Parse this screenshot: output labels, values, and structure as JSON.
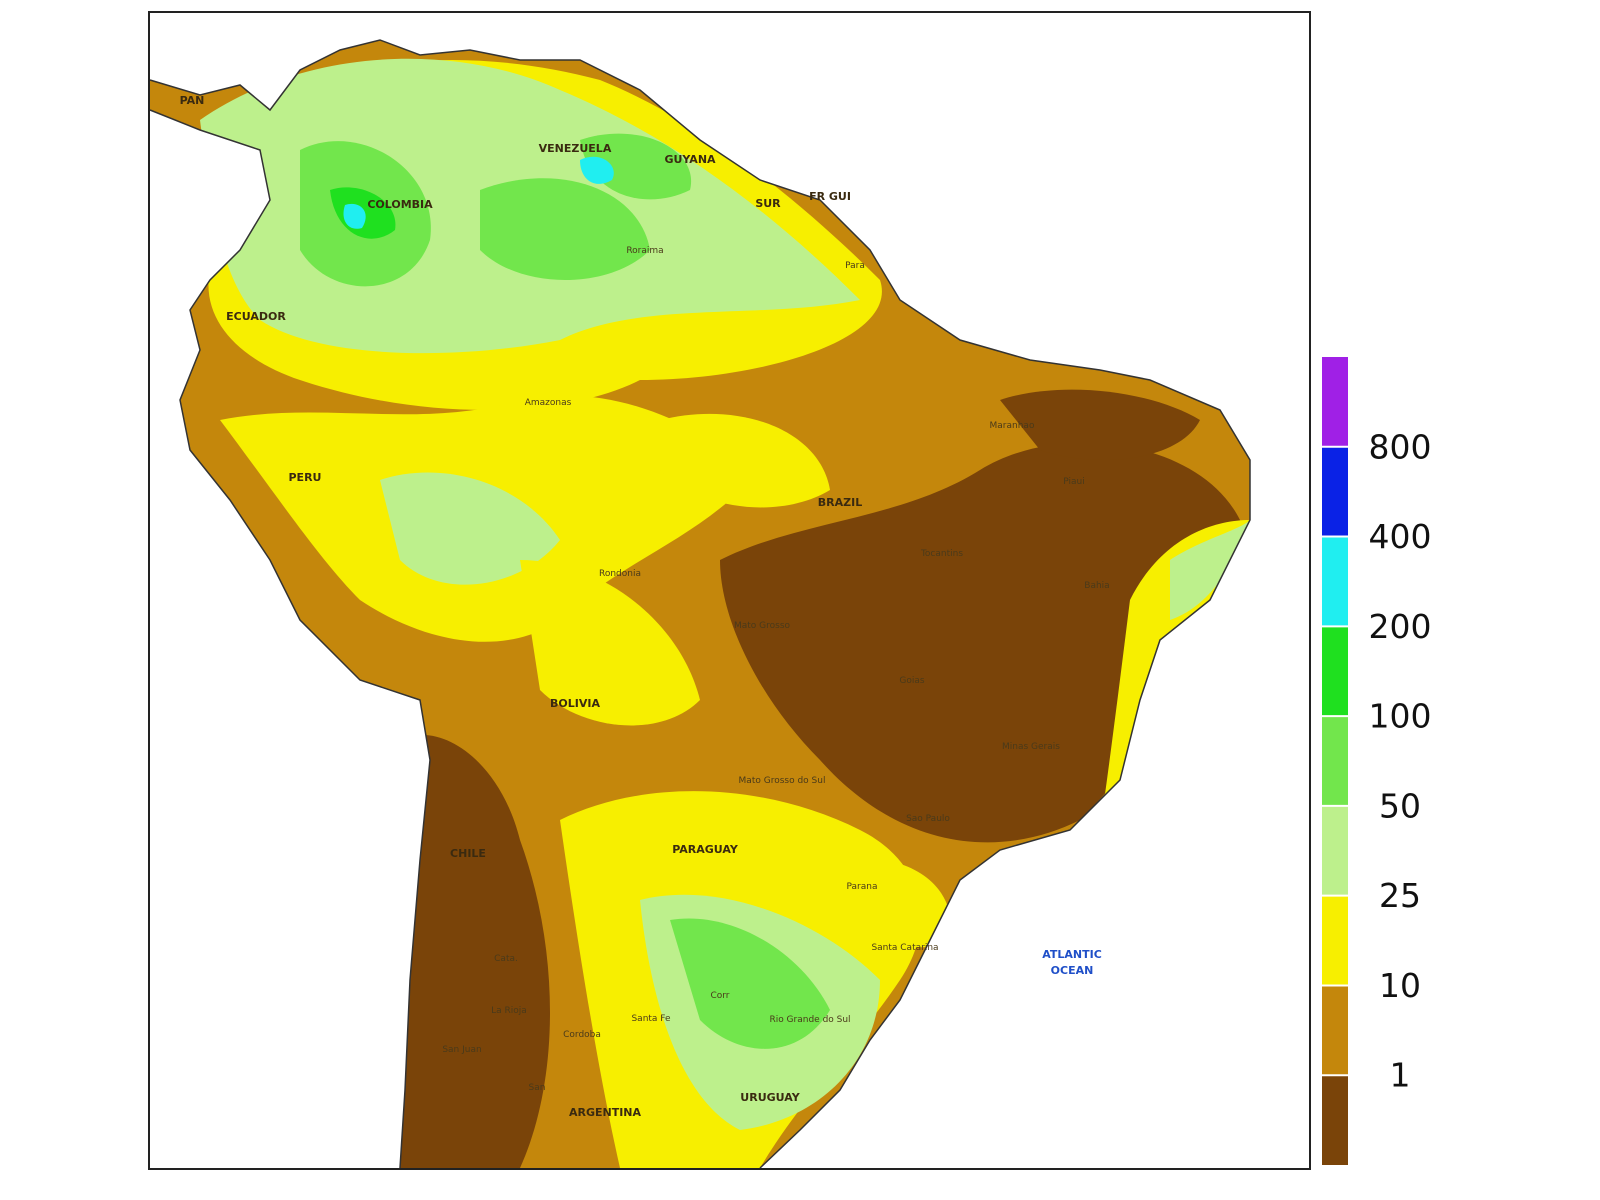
{
  "map": {
    "labels": [
      "PAN",
      "COLOMBIA",
      "VENEZUELA",
      "GUYANA",
      "SUR",
      "FR GUI",
      "ECUADOR",
      "PERU",
      "BRAZIL",
      "BOLIVIA",
      "PARAGUAY",
      "CHILE",
      "ARGENTINA",
      "URUGUAY",
      "Amazonas",
      "Roraima",
      "Para",
      "Maranhao",
      "Piaui",
      "Tocantins",
      "Bahia",
      "Mato Grosso",
      "Goias",
      "Minas Gerais",
      "Sao Paulo",
      "Parana",
      "Santa Catarina",
      "Rio Grande do Sul",
      "Mato Grosso do Sul",
      "Rondonia",
      "Cata.",
      "La Rioja",
      "San Juan",
      "Cordoba",
      "Santa Fe",
      "Corr",
      "San"
    ],
    "ocean_label": [
      "ATLANTIC",
      "OCEAN"
    ]
  },
  "legend": {
    "ticks": [
      1,
      10,
      25,
      50,
      100,
      200,
      400,
      800
    ],
    "colors": [
      "#7a4409",
      "#c4870c",
      "#f7ef00",
      "#bdf08c",
      "#72e64c",
      "#1fe01f",
      "#20eef0",
      "#0a22e6",
      "#a020e6"
    ]
  }
}
